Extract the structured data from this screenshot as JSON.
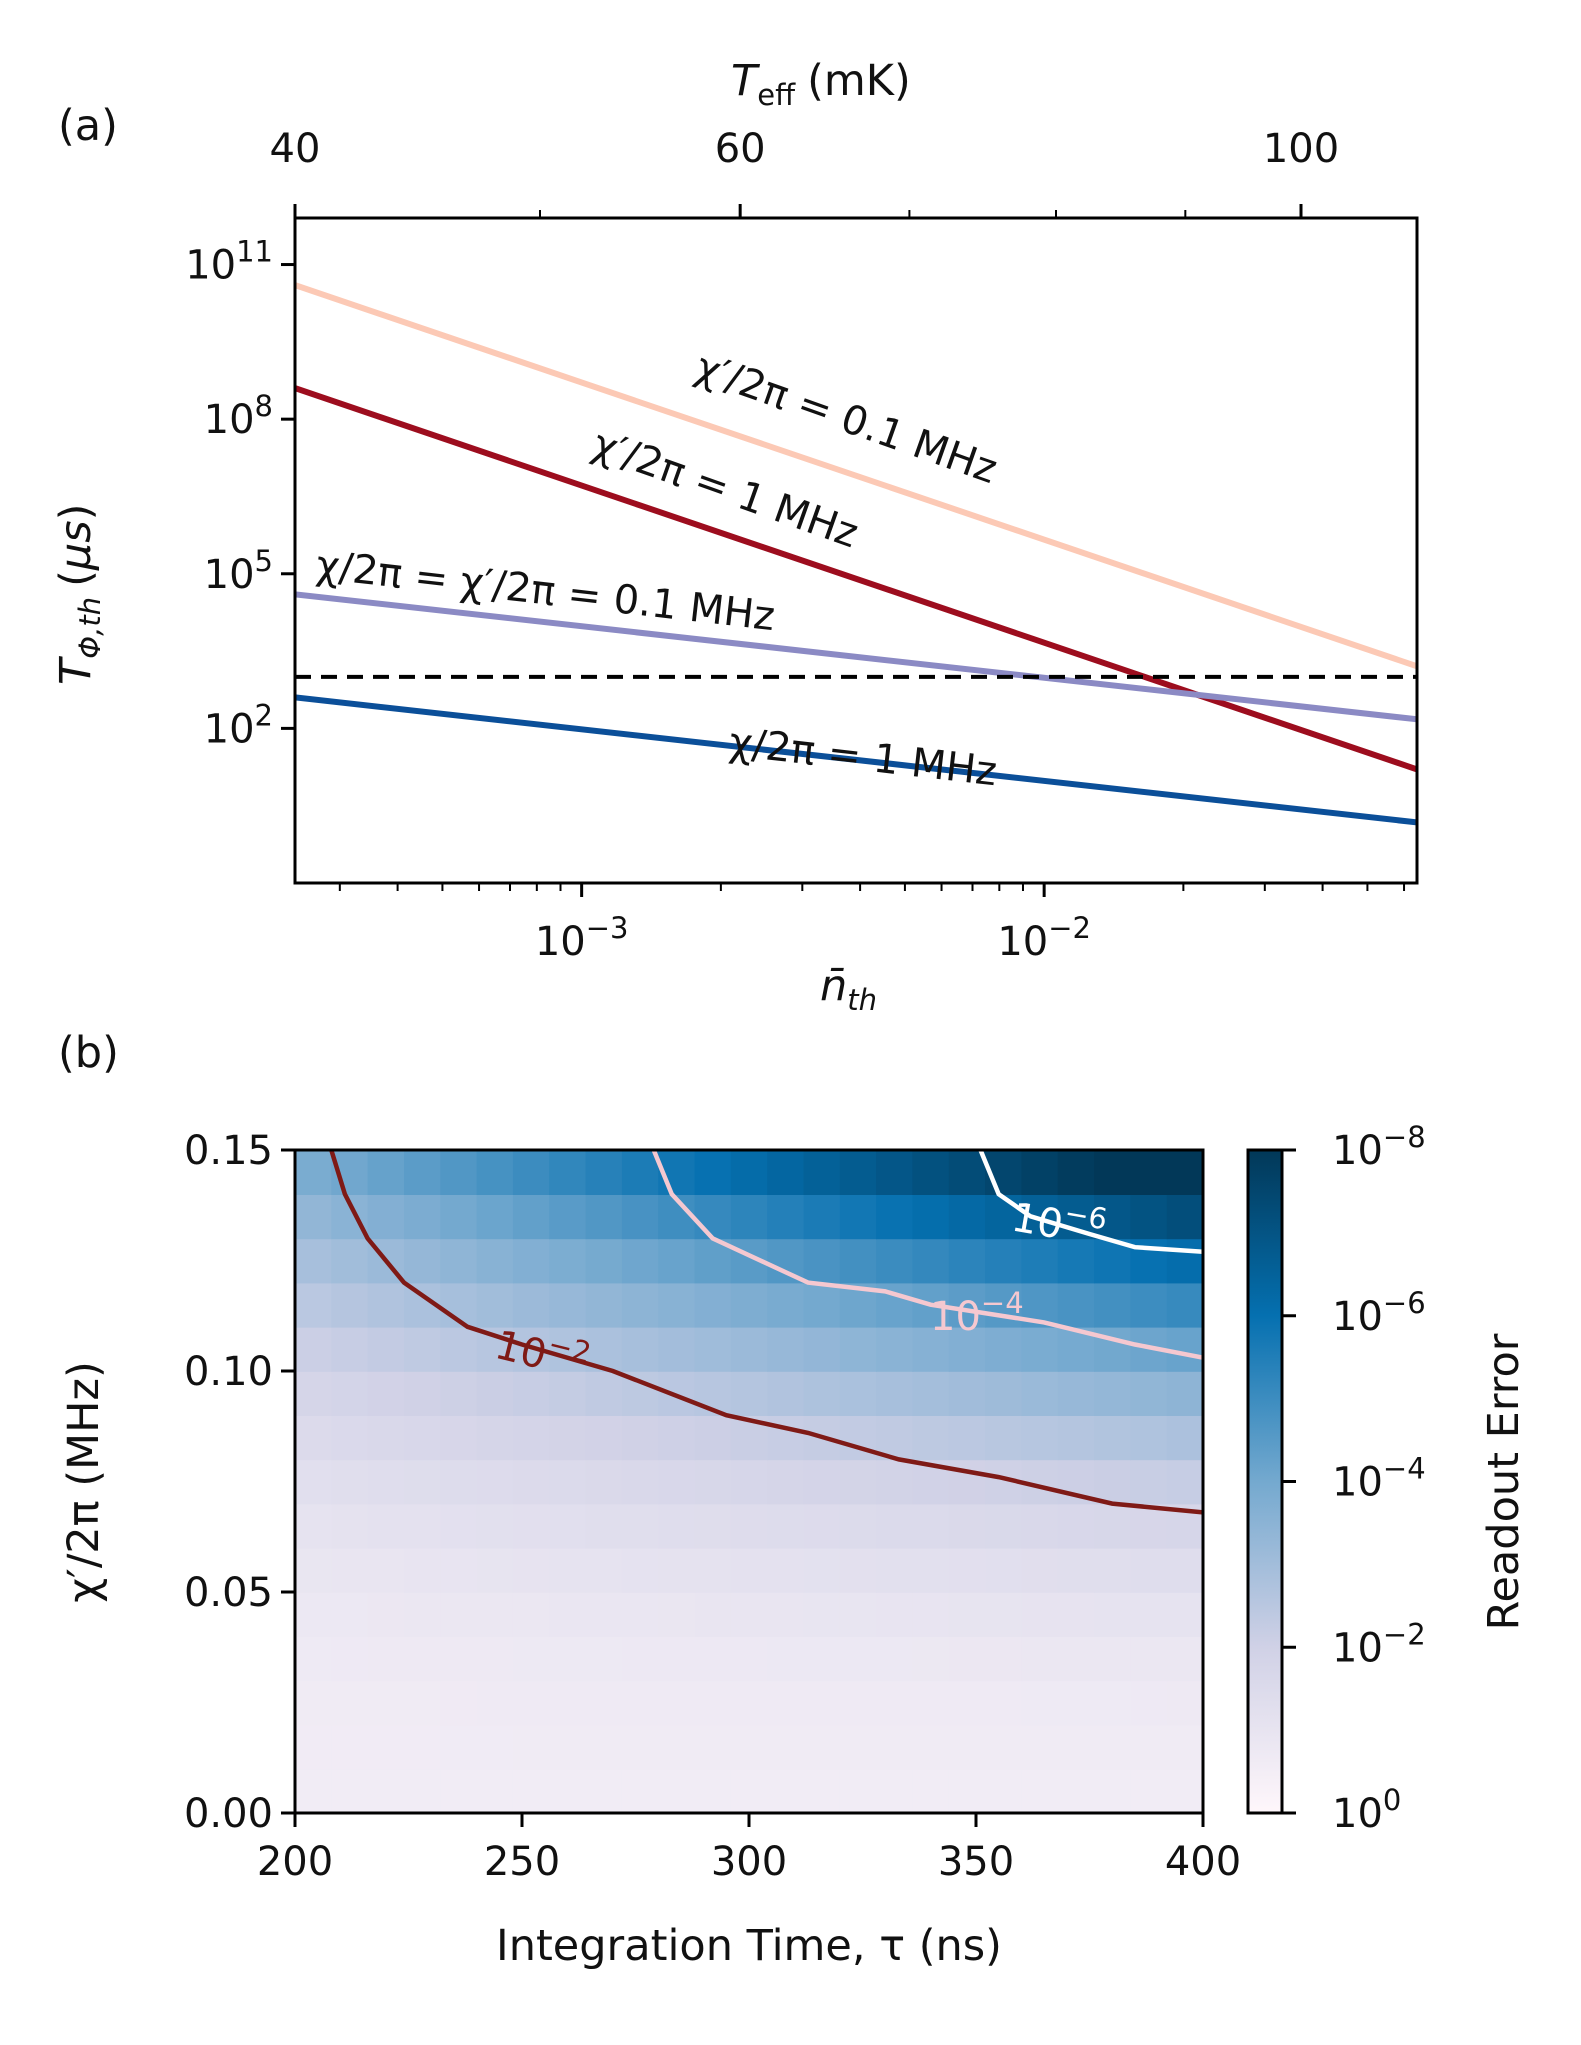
{
  "chart_data": [
    {
      "panel": "(a)",
      "type": "line",
      "xlabel": "n̄th",
      "ylabel": "TΦ,th (μs)",
      "x2label": "Teff (mK)",
      "xscale": "log",
      "yscale": "log",
      "xlim": [
        0.00024,
        0.064
      ],
      "ylim": [
        0.1,
        800000000000
      ],
      "x_ticks": [
        {
          "value": 0.001,
          "base": "10",
          "exp": "−3"
        },
        {
          "value": 0.01,
          "base": "10",
          "exp": "−2"
        }
      ],
      "y_ticks": [
        {
          "value": 100,
          "base": "10",
          "exp": "2"
        },
        {
          "value": 100000,
          "base": "10",
          "exp": "5"
        },
        {
          "value": 100000000,
          "base": "10",
          "exp": "8"
        },
        {
          "value": 100000000000,
          "base": "10",
          "exp": "11"
        }
      ],
      "x2_ticks": [
        {
          "value": 40,
          "label": "40"
        },
        {
          "value": 60,
          "label": "60"
        },
        {
          "value": 100,
          "label": "100"
        }
      ],
      "x2_minor_ticks": [
        50,
        70,
        80,
        90
      ],
      "series": [
        {
          "name": "χ′/2π = 0.1 MHz",
          "color": "#fcc9b5",
          "x": [
            0.00024,
            0.064
          ],
          "y": [
            40000000000,
            1600
          ]
        },
        {
          "name": "χ′/2π = 1 MHz",
          "color": "#9d0d1e",
          "x": [
            0.00024,
            0.064
          ],
          "y": [
            400000000,
            16
          ]
        },
        {
          "name": "χ/2π = χ′/2π = 0.1 MHz",
          "color": "#8b8ac4",
          "x": [
            0.00024,
            0.064
          ],
          "y": [
            40000,
            150
          ]
        },
        {
          "name": "χ/2π = 1 MHz",
          "color": "#0b4f99",
          "x": [
            0.00024,
            0.064
          ],
          "y": [
            400,
            1.5
          ]
        }
      ],
      "reference_line": {
        "y": 1000,
        "style": "dashed",
        "color": "#000000"
      }
    },
    {
      "panel": "(b)",
      "type": "heatmap",
      "xlabel": "Integration Time, τ (ns)",
      "ylabel": "χ′/2π (MHz)",
      "colorbar_label": "Readout Error",
      "xlim": [
        200,
        400
      ],
      "ylim": [
        0,
        0.15
      ],
      "x_ticks": [
        "200",
        "250",
        "300",
        "350",
        "400"
      ],
      "y_ticks": [
        "0.00",
        "0.05",
        "0.10",
        "0.15"
      ],
      "colorbar_ticks": [
        {
          "base": "10",
          "exp": "0"
        },
        {
          "base": "10",
          "exp": "−2"
        },
        {
          "base": "10",
          "exp": "−4"
        },
        {
          "base": "10",
          "exp": "−6"
        },
        {
          "base": "10",
          "exp": "−8"
        }
      ],
      "colorbar_range_log10": [
        0,
        -8
      ],
      "colormap": [
        "#fff7fb",
        "#d0d1e6",
        "#74a9cf",
        "#0570b0",
        "#023858"
      ],
      "grid": {
        "x_start": 200,
        "x_step": 8,
        "x_count": 25,
        "y_start": 0,
        "y_step": 0.01,
        "y_count": 15
      },
      "contours": [
        {
          "level": "10^-2",
          "label_base": "10",
          "label_exp": "−2",
          "color": "#7f1a16",
          "points": [
            [
              208,
              0.15
            ],
            [
              211,
              0.14
            ],
            [
              216,
              0.13
            ],
            [
              224,
              0.12
            ],
            [
              238,
              0.11
            ],
            [
              250,
              0.106
            ],
            [
              270,
              0.1
            ],
            [
              295,
              0.09
            ],
            [
              313,
              0.086
            ],
            [
              333,
              0.08
            ],
            [
              355,
              0.076
            ],
            [
              380,
              0.07
            ],
            [
              400,
              0.068
            ]
          ]
        },
        {
          "level": "10^-4",
          "label_base": "10",
          "label_exp": "−4",
          "color": "#f5c8d0",
          "points": [
            [
              279,
              0.15
            ],
            [
              283,
              0.14
            ],
            [
              292,
              0.13
            ],
            [
              313,
              0.12
            ],
            [
              330,
              0.118
            ],
            [
              340,
              0.115
            ],
            [
              365,
              0.111
            ],
            [
              385,
              0.106
            ],
            [
              400,
              0.103
            ]
          ]
        },
        {
          "level": "10^-6",
          "label_base": "10",
          "label_exp": "−6",
          "color": "#ffffff",
          "points": [
            [
              351,
              0.15
            ],
            [
              355,
              0.14
            ],
            [
              362,
              0.135
            ],
            [
              375,
              0.131
            ],
            [
              385,
              0.128
            ],
            [
              400,
              0.127
            ]
          ]
        }
      ]
    }
  ]
}
